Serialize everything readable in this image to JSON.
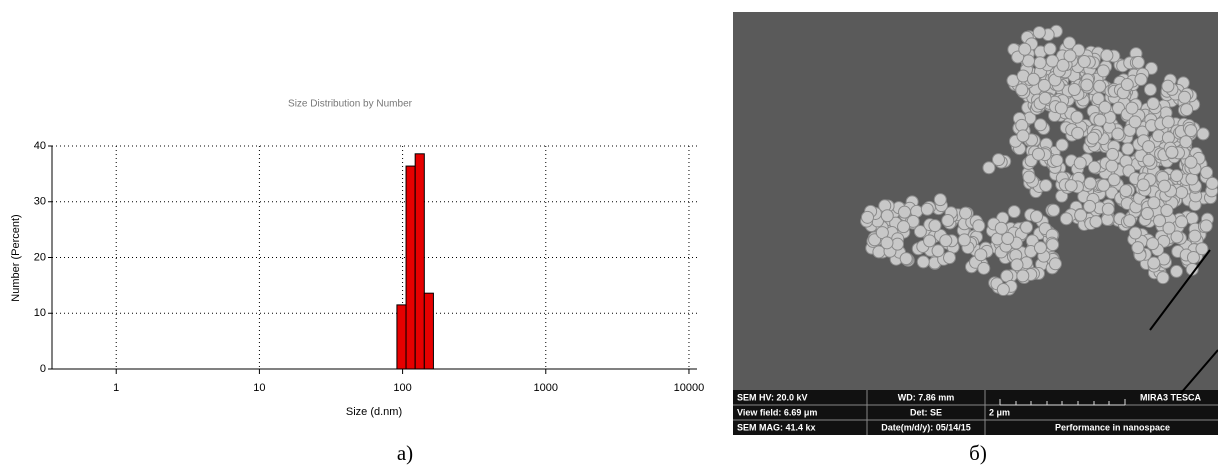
{
  "chart_data": {
    "type": "histogram",
    "title": "Size Distribution by Number",
    "x_label": "Size (d.nm)",
    "y_label": "Number (Percent)",
    "bins": [
      91.28,
      105.7,
      122.4,
      141.8,
      164.2
    ],
    "values": [
      11.5,
      36.4,
      38.6,
      13.6
    ],
    "color": "#e60000",
    "log_x": true,
    "xlim": [
      0.356,
      11380
    ],
    "xticks": [
      1,
      10,
      100,
      1000,
      10000
    ],
    "ylim": [
      0,
      40
    ],
    "yticks": [
      0,
      10,
      20,
      30,
      40
    ],
    "grid": true
  },
  "captions": [
    "а)",
    "б)"
  ],
  "sem_panel": {
    "rows": [
      [
        "SEM HV: 20.0 kV",
        "WD: 7.86 mm",
        "MIRA3 TESCA"
      ],
      [
        "View field: 6.69 μm",
        "Det: SE",
        "2 μm"
      ],
      [
        "SEM MAG: 41.4 kx",
        "Date(m/d/y): 05/14/15",
        "Performance in nanospace"
      ]
    ]
  }
}
